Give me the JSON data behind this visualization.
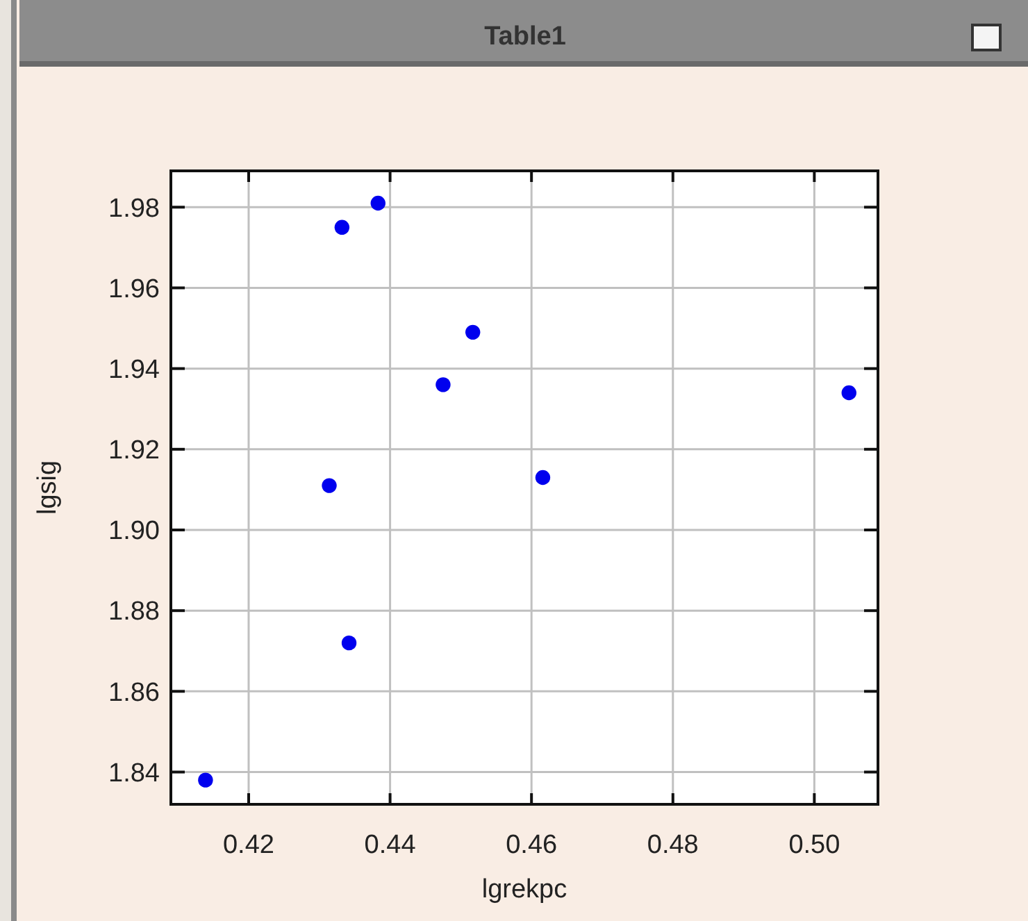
{
  "chart_data": {
    "type": "scatter",
    "title": "Table1",
    "xlabel": "lgrekpc",
    "ylabel": "lgsig",
    "x": [
      0.4332,
      0.4383,
      0.4517,
      0.4475,
      0.4314,
      0.4616,
      0.5049,
      0.4342,
      0.4139
    ],
    "values": [
      1.975,
      1.981,
      1.949,
      1.936,
      1.911,
      1.913,
      1.934,
      1.872,
      1.838
    ],
    "color": "#0000ee",
    "marker": "circle",
    "grid": true,
    "xlim": [
      0.409,
      0.509
    ],
    "xticks": [
      0.42,
      0.44,
      0.46,
      0.48,
      {
        "value": 0.5,
        "label": "0.50"
      }
    ],
    "ylim": [
      1.832,
      1.989
    ],
    "yticks": [
      1.84,
      1.86,
      1.88,
      {
        "value": 1.9,
        "label": "1.90"
      },
      1.92,
      1.94,
      1.96,
      1.98
    ]
  }
}
